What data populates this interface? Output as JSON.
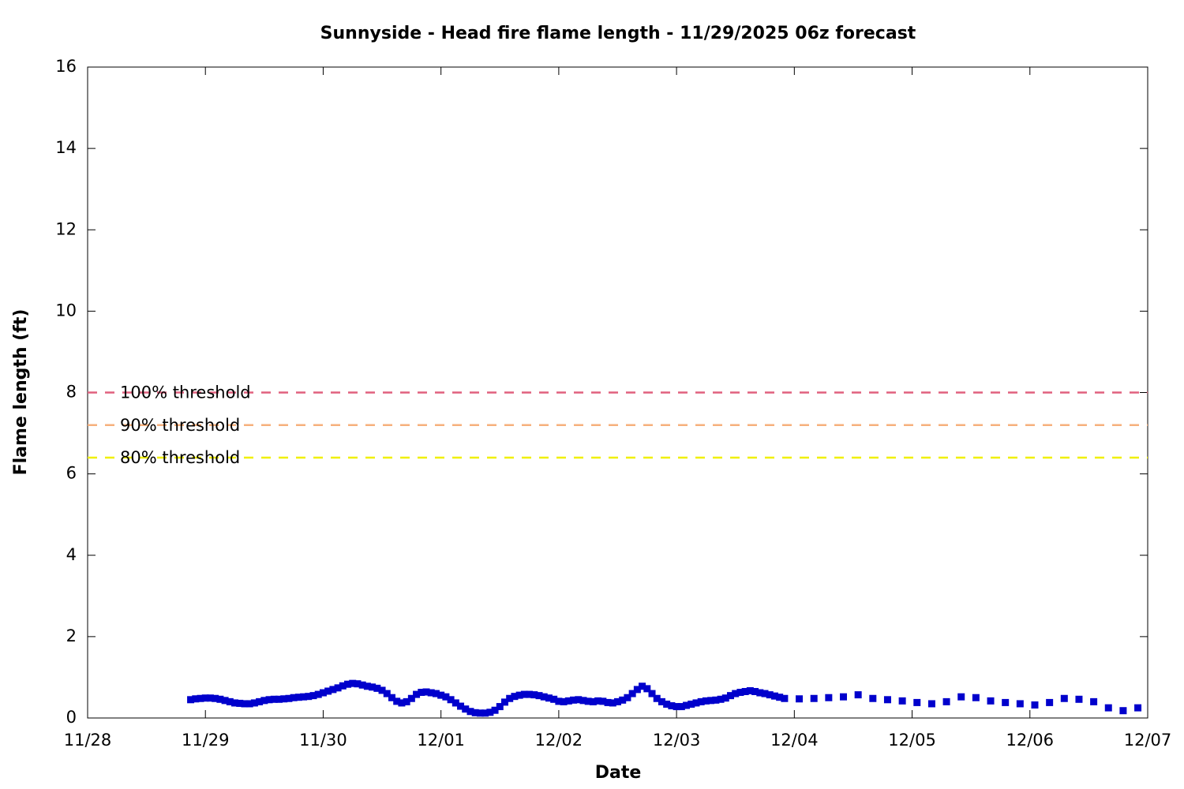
{
  "chart_data": {
    "type": "scatter",
    "title": "Sunnyside - Head fire flame length - 11/29/2025 06z forecast",
    "xlabel": "Date",
    "ylabel": "Flame length (ft)",
    "color": "#0000cc",
    "marker": "square",
    "x": [
      21,
      22,
      23,
      24,
      25,
      26,
      27,
      28,
      29,
      30,
      31,
      32,
      33,
      34,
      35,
      36,
      37,
      38,
      39,
      40,
      41,
      42,
      43,
      44,
      45,
      46,
      47,
      48,
      49,
      50,
      51,
      52,
      53,
      54,
      55,
      56,
      57,
      58,
      59,
      60,
      61,
      62,
      63,
      64,
      65,
      66,
      67,
      68,
      69,
      70,
      71,
      72,
      73,
      74,
      75,
      76,
      77,
      78,
      79,
      80,
      81,
      82,
      83,
      84,
      85,
      86,
      87,
      88,
      89,
      90,
      91,
      92,
      93,
      94,
      95,
      96,
      97,
      98,
      99,
      100,
      101,
      102,
      103,
      104,
      105,
      106,
      107,
      108,
      109,
      110,
      111,
      112,
      113,
      114,
      115,
      116,
      117,
      118,
      119,
      120,
      121,
      122,
      123,
      124,
      125,
      126,
      127,
      128,
      129,
      130,
      131,
      132,
      133,
      134,
      135,
      136,
      137,
      138,
      139,
      140,
      141,
      142,
      145,
      148,
      151,
      154,
      157,
      160,
      163,
      166,
      169,
      172,
      175,
      178,
      181,
      184,
      187,
      190,
      193,
      196,
      199,
      202,
      205,
      208,
      211,
      214
    ],
    "values": [
      0.45,
      0.47,
      0.48,
      0.49,
      0.49,
      0.48,
      0.46,
      0.43,
      0.4,
      0.37,
      0.36,
      0.35,
      0.35,
      0.37,
      0.4,
      0.43,
      0.45,
      0.46,
      0.46,
      0.47,
      0.48,
      0.5,
      0.51,
      0.52,
      0.53,
      0.55,
      0.58,
      0.62,
      0.66,
      0.7,
      0.74,
      0.79,
      0.83,
      0.85,
      0.84,
      0.81,
      0.78,
      0.76,
      0.73,
      0.68,
      0.6,
      0.5,
      0.41,
      0.37,
      0.4,
      0.48,
      0.58,
      0.63,
      0.64,
      0.62,
      0.6,
      0.56,
      0.52,
      0.45,
      0.37,
      0.29,
      0.22,
      0.16,
      0.13,
      0.12,
      0.12,
      0.14,
      0.19,
      0.28,
      0.39,
      0.48,
      0.53,
      0.56,
      0.58,
      0.58,
      0.57,
      0.55,
      0.52,
      0.49,
      0.46,
      0.41,
      0.4,
      0.42,
      0.44,
      0.45,
      0.43,
      0.41,
      0.4,
      0.42,
      0.41,
      0.38,
      0.37,
      0.4,
      0.44,
      0.5,
      0.6,
      0.7,
      0.78,
      0.72,
      0.6,
      0.48,
      0.4,
      0.34,
      0.3,
      0.28,
      0.28,
      0.31,
      0.34,
      0.37,
      0.4,
      0.42,
      0.43,
      0.44,
      0.46,
      0.49,
      0.55,
      0.6,
      0.63,
      0.65,
      0.67,
      0.65,
      0.62,
      0.6,
      0.57,
      0.54,
      0.51,
      0.48,
      0.47,
      0.48,
      0.5,
      0.52,
      0.57,
      0.48,
      0.45,
      0.42,
      0.38,
      0.35,
      0.4,
      0.52,
      0.5,
      0.42,
      0.38,
      0.35,
      0.32,
      0.38,
      0.48,
      0.46,
      0.4,
      0.25,
      0.18,
      0.25
    ],
    "thresholds": [
      {
        "name": "100% threshold",
        "value": 8,
        "color": "#e0607e"
      },
      {
        "name": "90% threshold",
        "value": 7.2,
        "color": "#f6b07c"
      },
      {
        "name": "80% threshold",
        "value": 6.4,
        "color": "#f0f000"
      }
    ],
    "xlim": [
      0,
      216
    ],
    "xticks": [
      {
        "value": 0,
        "label": "11/28"
      },
      {
        "value": 24,
        "label": "11/29"
      },
      {
        "value": 48,
        "label": "11/30"
      },
      {
        "value": 72,
        "label": "12/01"
      },
      {
        "value": 96,
        "label": "12/02"
      },
      {
        "value": 120,
        "label": "12/03"
      },
      {
        "value": 144,
        "label": "12/04"
      },
      {
        "value": 168,
        "label": "12/05"
      },
      {
        "value": 192,
        "label": "12/06"
      },
      {
        "value": 216,
        "label": "12/07"
      }
    ],
    "ylim": [
      0,
      16
    ],
    "yticks": [
      0,
      2,
      4,
      6,
      8,
      10,
      12,
      14,
      16
    ],
    "grid": false
  }
}
